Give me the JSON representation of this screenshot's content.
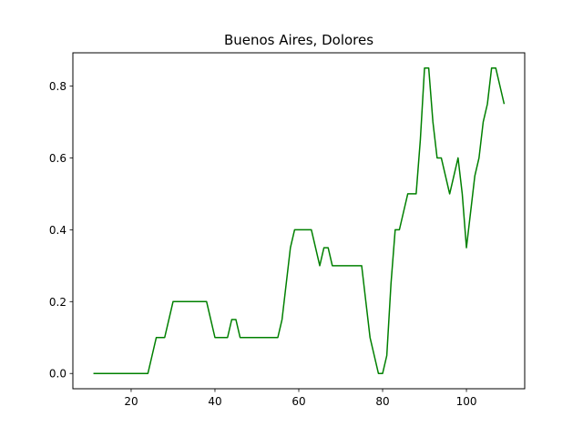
{
  "chart_data": {
    "type": "line",
    "title": "Buenos Aires, Dolores",
    "xlabel": "",
    "ylabel": "",
    "xlim": [
      6.1,
      113.9
    ],
    "ylim": [
      -0.0425,
      0.8925
    ],
    "x_ticks": [
      20,
      40,
      60,
      80,
      100
    ],
    "y_ticks": [
      0.0,
      0.2,
      0.4,
      0.6,
      0.8
    ],
    "x_tick_labels": [
      "20",
      "40",
      "60",
      "80",
      "100"
    ],
    "y_tick_labels": [
      "0.0",
      "0.2",
      "0.4",
      "0.6",
      "0.8"
    ],
    "grid": false,
    "legend": "none",
    "series": [
      {
        "color": "#008000",
        "x": [
          11,
          12,
          13,
          14,
          15,
          16,
          17,
          18,
          19,
          20,
          21,
          22,
          23,
          24,
          25,
          26,
          27,
          28,
          29,
          30,
          31,
          32,
          33,
          34,
          35,
          36,
          37,
          38,
          39,
          40,
          41,
          42,
          43,
          44,
          45,
          46,
          47,
          48,
          49,
          50,
          51,
          52,
          53,
          54,
          55,
          56,
          57,
          58,
          59,
          60,
          61,
          62,
          63,
          64,
          65,
          66,
          67,
          68,
          69,
          70,
          71,
          72,
          73,
          74,
          75,
          76,
          77,
          78,
          79,
          80,
          81,
          82,
          83,
          84,
          85,
          86,
          87,
          88,
          89,
          90,
          91,
          92,
          93,
          94,
          95,
          96,
          97,
          98,
          99,
          100,
          101,
          102,
          103,
          104,
          105,
          106,
          107,
          108,
          109
        ],
        "values": [
          0,
          0,
          0,
          0,
          0,
          0,
          0,
          0,
          0,
          0,
          0,
          0,
          0,
          0,
          0.05,
          0.1,
          0.1,
          0.1,
          0.15,
          0.2,
          0.2,
          0.2,
          0.2,
          0.2,
          0.2,
          0.2,
          0.2,
          0.2,
          0.15,
          0.1,
          0.1,
          0.1,
          0.1,
          0.15,
          0.15,
          0.1,
          0.1,
          0.1,
          0.1,
          0.1,
          0.1,
          0.1,
          0.1,
          0.1,
          0.1,
          0.15,
          0.25,
          0.35,
          0.4,
          0.4,
          0.4,
          0.4,
          0.4,
          0.35,
          0.3,
          0.35,
          0.35,
          0.3,
          0.3,
          0.3,
          0.3,
          0.3,
          0.3,
          0.3,
          0.3,
          0.2,
          0.1,
          0.05,
          0,
          0,
          0.05,
          0.25,
          0.4,
          0.4,
          0.45,
          0.5,
          0.5,
          0.5,
          0.65,
          0.85,
          0.85,
          0.7,
          0.6,
          0.6,
          0.55,
          0.5,
          0.55,
          0.6,
          0.5,
          0.35,
          0.45,
          0.55,
          0.6,
          0.7,
          0.75,
          0.85,
          0.85,
          0.8,
          0.75
        ]
      }
    ]
  }
}
